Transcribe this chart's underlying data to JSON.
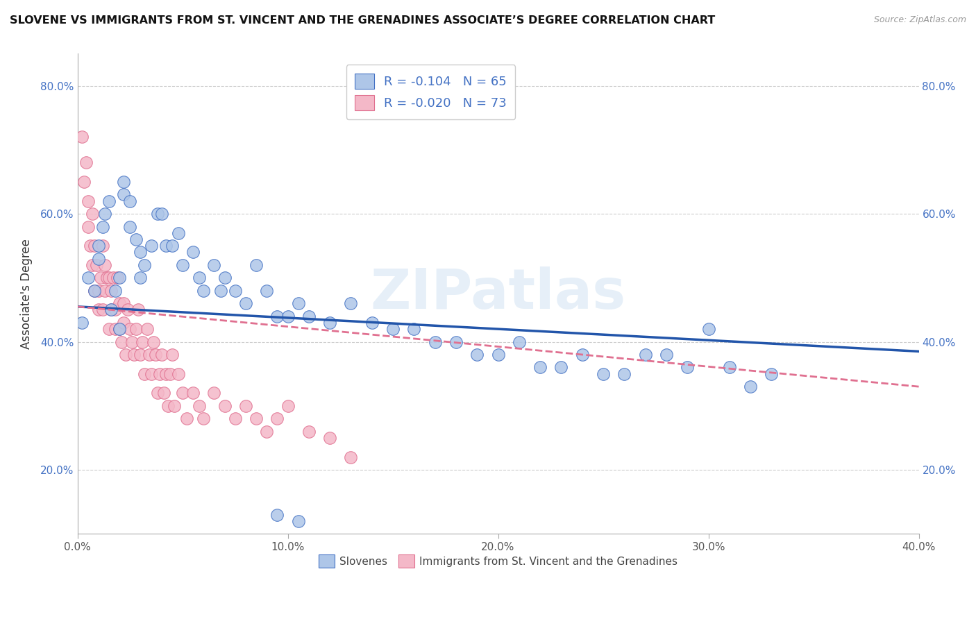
{
  "title": "SLOVENE VS IMMIGRANTS FROM ST. VINCENT AND THE GRENADINES ASSOCIATE’S DEGREE CORRELATION CHART",
  "source": "Source: ZipAtlas.com",
  "ylabel": "Associate's Degree",
  "xlim": [
    0.0,
    0.4
  ],
  "ylim": [
    0.1,
    0.85
  ],
  "yticks": [
    0.2,
    0.4,
    0.6,
    0.8
  ],
  "ytick_labels": [
    "20.0%",
    "40.0%",
    "60.0%",
    "80.0%"
  ],
  "xticks": [
    0.0,
    0.1,
    0.2,
    0.3,
    0.4
  ],
  "xtick_labels": [
    "0.0%",
    "10.0%",
    "20.0%",
    "30.0%",
    "40.0%"
  ],
  "blue_R": -0.104,
  "blue_N": 65,
  "pink_R": -0.02,
  "pink_N": 73,
  "blue_color": "#aec6e8",
  "pink_color": "#f4b8c8",
  "blue_edge_color": "#4472c4",
  "pink_edge_color": "#e07090",
  "blue_line_color": "#2255aa",
  "pink_line_color": "#e07090",
  "legend_label_blue": "Slovenes",
  "legend_label_pink": "Immigrants from St. Vincent and the Grenadines",
  "watermark": "ZIPatlas",
  "grid_color": "#cccccc",
  "blue_x": [
    0.002,
    0.005,
    0.008,
    0.01,
    0.01,
    0.012,
    0.013,
    0.015,
    0.016,
    0.018,
    0.02,
    0.02,
    0.022,
    0.022,
    0.025,
    0.025,
    0.028,
    0.03,
    0.03,
    0.032,
    0.035,
    0.038,
    0.04,
    0.042,
    0.045,
    0.048,
    0.05,
    0.055,
    0.058,
    0.06,
    0.065,
    0.068,
    0.07,
    0.075,
    0.08,
    0.085,
    0.09,
    0.095,
    0.1,
    0.105,
    0.11,
    0.12,
    0.13,
    0.14,
    0.15,
    0.16,
    0.17,
    0.18,
    0.19,
    0.2,
    0.21,
    0.22,
    0.23,
    0.24,
    0.25,
    0.26,
    0.27,
    0.28,
    0.29,
    0.3,
    0.31,
    0.32,
    0.33,
    0.105,
    0.095
  ],
  "blue_y": [
    0.43,
    0.5,
    0.48,
    0.53,
    0.55,
    0.58,
    0.6,
    0.62,
    0.45,
    0.48,
    0.5,
    0.42,
    0.65,
    0.63,
    0.62,
    0.58,
    0.56,
    0.54,
    0.5,
    0.52,
    0.55,
    0.6,
    0.6,
    0.55,
    0.55,
    0.57,
    0.52,
    0.54,
    0.5,
    0.48,
    0.52,
    0.48,
    0.5,
    0.48,
    0.46,
    0.52,
    0.48,
    0.44,
    0.44,
    0.46,
    0.44,
    0.43,
    0.46,
    0.43,
    0.42,
    0.42,
    0.4,
    0.4,
    0.38,
    0.38,
    0.4,
    0.36,
    0.36,
    0.38,
    0.35,
    0.35,
    0.38,
    0.38,
    0.36,
    0.42,
    0.36,
    0.33,
    0.35,
    0.12,
    0.13
  ],
  "pink_x": [
    0.002,
    0.003,
    0.004,
    0.005,
    0.005,
    0.006,
    0.007,
    0.007,
    0.008,
    0.008,
    0.009,
    0.01,
    0.01,
    0.011,
    0.012,
    0.012,
    0.013,
    0.013,
    0.014,
    0.015,
    0.015,
    0.016,
    0.016,
    0.017,
    0.018,
    0.018,
    0.019,
    0.02,
    0.02,
    0.021,
    0.022,
    0.022,
    0.023,
    0.024,
    0.025,
    0.026,
    0.027,
    0.028,
    0.029,
    0.03,
    0.031,
    0.032,
    0.033,
    0.034,
    0.035,
    0.036,
    0.037,
    0.038,
    0.039,
    0.04,
    0.041,
    0.042,
    0.043,
    0.044,
    0.045,
    0.046,
    0.048,
    0.05,
    0.052,
    0.055,
    0.058,
    0.06,
    0.065,
    0.07,
    0.075,
    0.08,
    0.085,
    0.09,
    0.095,
    0.1,
    0.11,
    0.12,
    0.13
  ],
  "pink_y": [
    0.72,
    0.65,
    0.68,
    0.62,
    0.58,
    0.55,
    0.52,
    0.6,
    0.48,
    0.55,
    0.52,
    0.45,
    0.48,
    0.5,
    0.55,
    0.45,
    0.48,
    0.52,
    0.5,
    0.42,
    0.5,
    0.45,
    0.48,
    0.5,
    0.42,
    0.45,
    0.5,
    0.42,
    0.46,
    0.4,
    0.43,
    0.46,
    0.38,
    0.45,
    0.42,
    0.4,
    0.38,
    0.42,
    0.45,
    0.38,
    0.4,
    0.35,
    0.42,
    0.38,
    0.35,
    0.4,
    0.38,
    0.32,
    0.35,
    0.38,
    0.32,
    0.35,
    0.3,
    0.35,
    0.38,
    0.3,
    0.35,
    0.32,
    0.28,
    0.32,
    0.3,
    0.28,
    0.32,
    0.3,
    0.28,
    0.3,
    0.28,
    0.26,
    0.28,
    0.3,
    0.26,
    0.25,
    0.22
  ],
  "blue_trendline_x": [
    0.0,
    0.4
  ],
  "blue_trendline_y": [
    0.455,
    0.385
  ],
  "pink_trendline_x": [
    0.0,
    0.4
  ],
  "pink_trendline_y": [
    0.455,
    0.33
  ]
}
